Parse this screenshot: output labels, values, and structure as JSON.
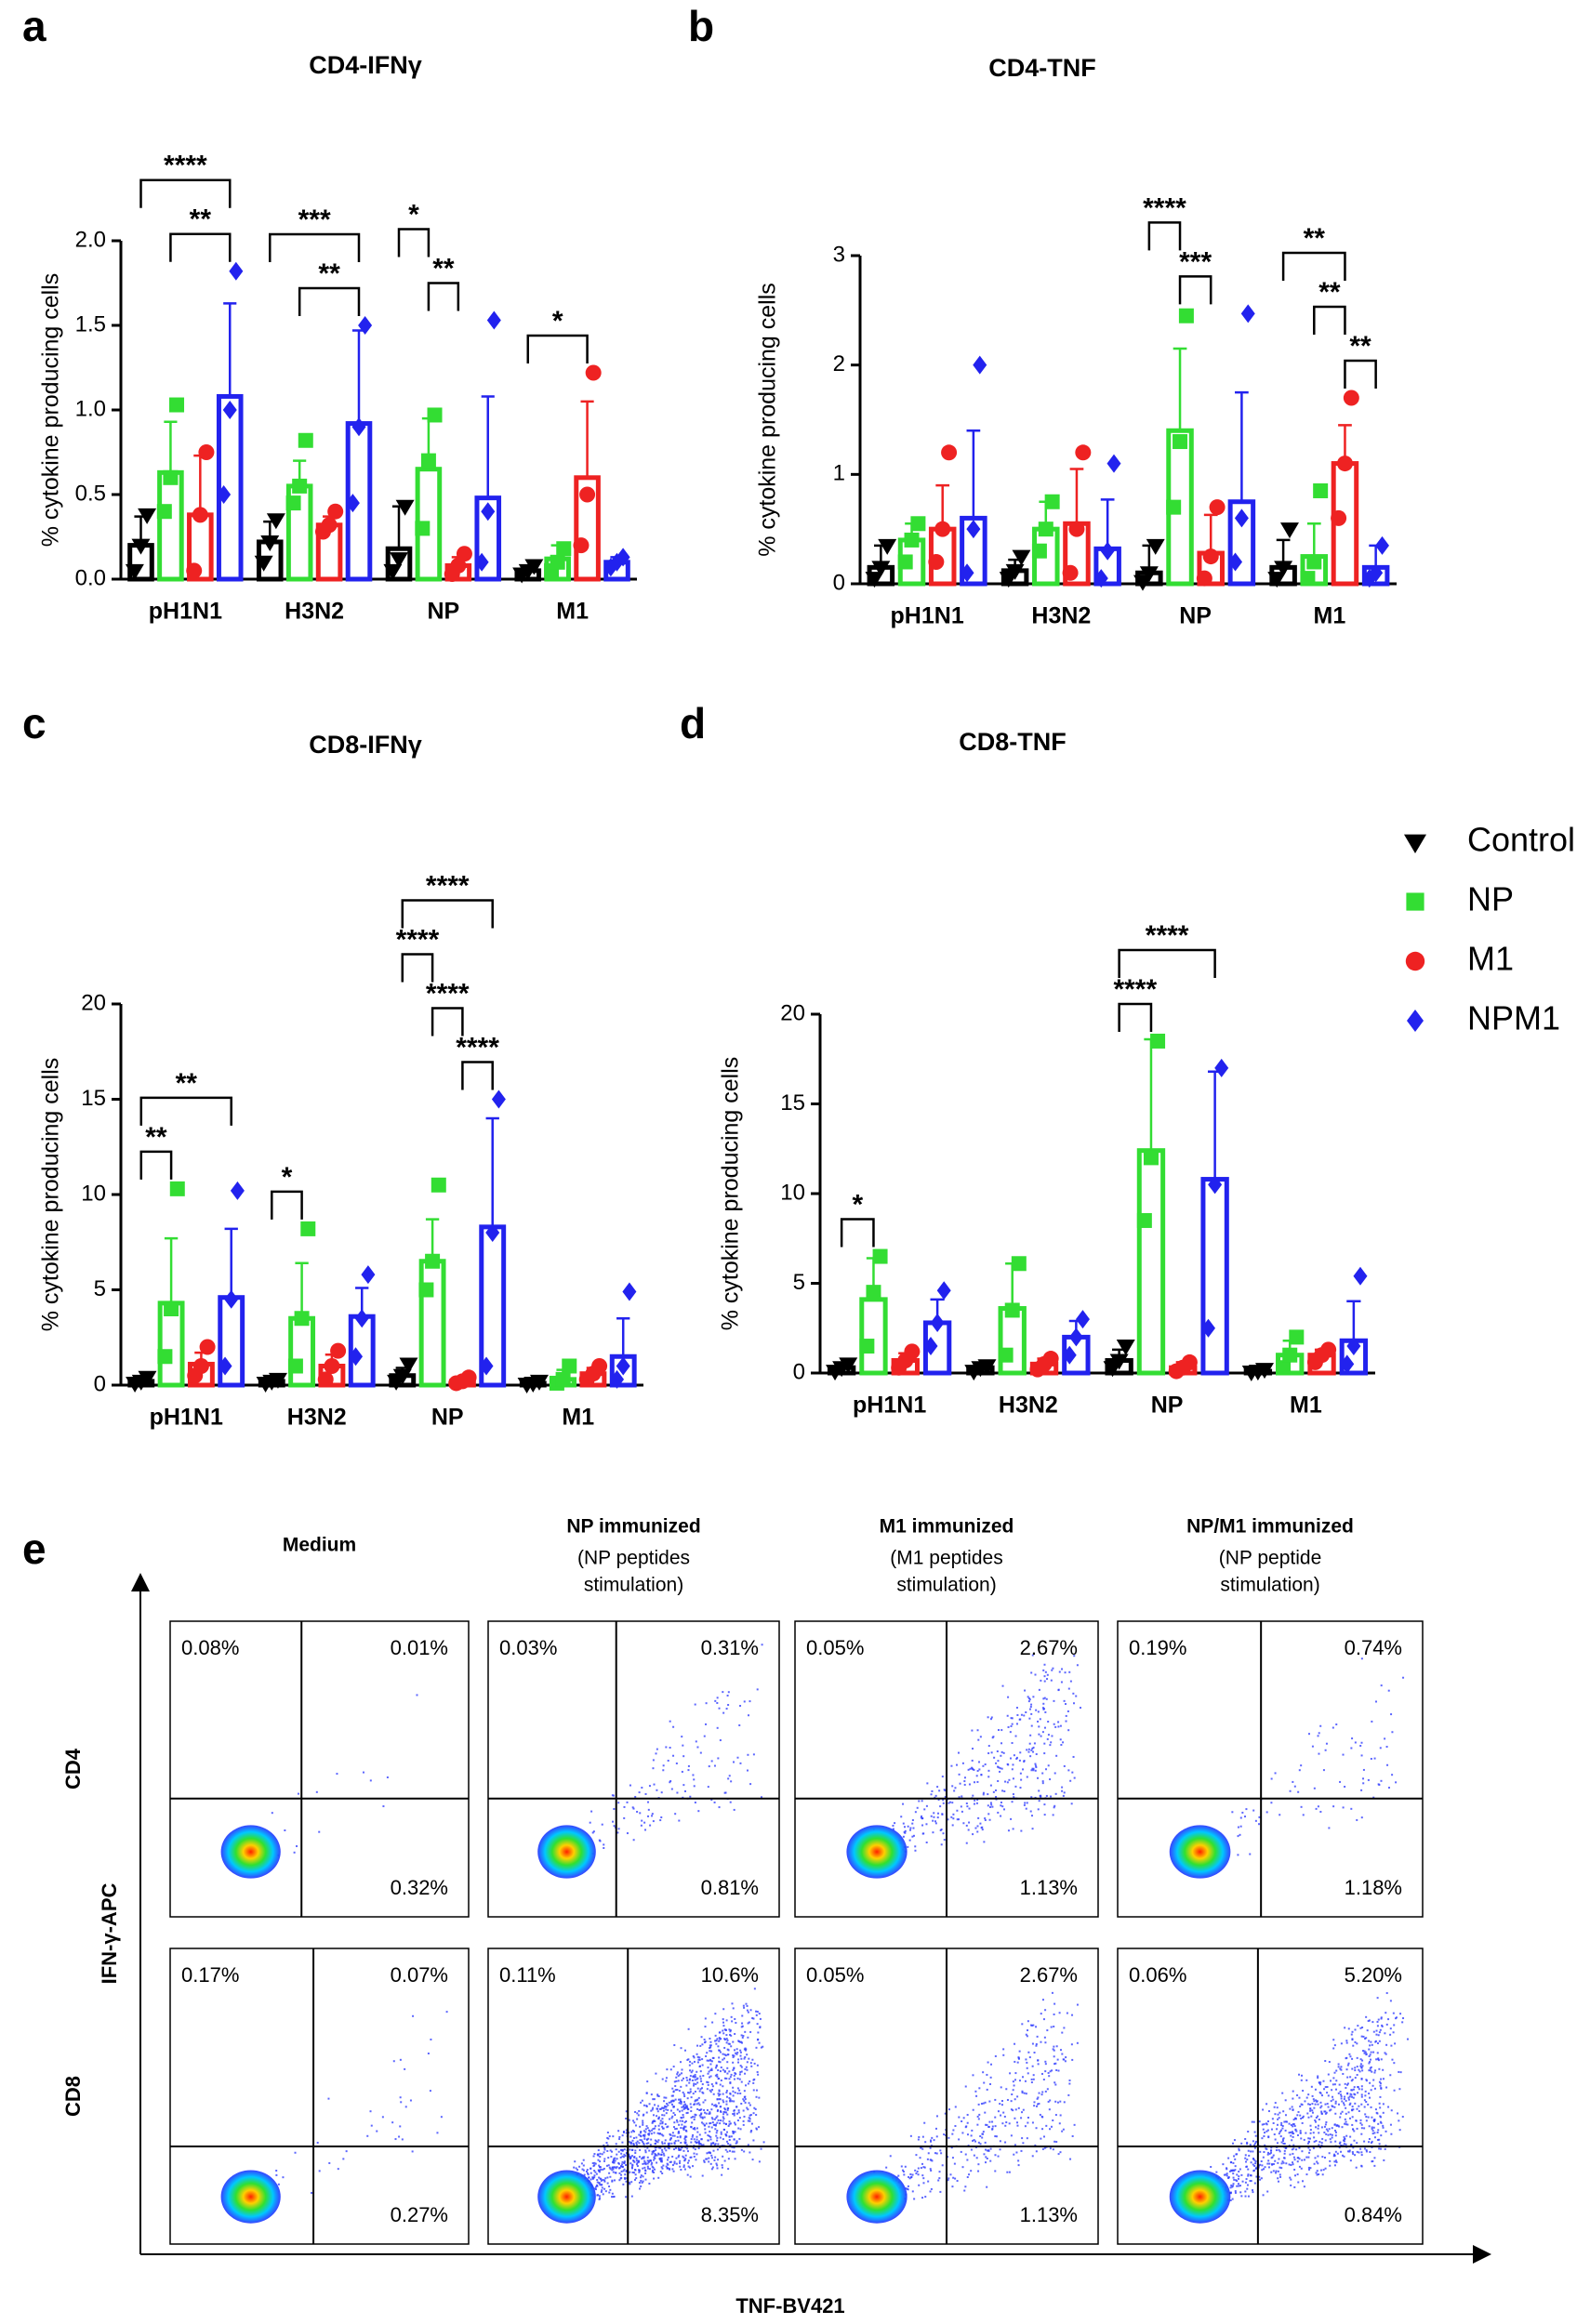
{
  "chart_data": [
    {
      "type": "bar",
      "panel": "a",
      "title": "CD4-IFNγ",
      "ylabel": "% cytokine producing cells",
      "categories": [
        "pH1N1",
        "H3N2",
        "NP",
        "M1"
      ],
      "ylim": [
        0,
        2.0
      ],
      "yticks": [
        {
          "value": 0,
          "label": "0.0"
        },
        0.5,
        {
          "value": 1,
          "label": "1.0"
        },
        1.5,
        {
          "value": 2,
          "label": "2.0"
        }
      ],
      "series": [
        {
          "name": "Control",
          "color": "#000000",
          "marker": "triangle-down",
          "values": [
            0.2,
            0.22,
            0.18,
            0.05
          ],
          "errors": [
            0.17,
            0.12,
            0.25,
            0.03
          ],
          "points": [
            [
              0.05,
              0.2,
              0.38
            ],
            [
              0.1,
              0.22,
              0.35
            ],
            [
              0.05,
              0.12,
              0.43
            ],
            [
              0.03,
              0.05,
              0.08
            ]
          ]
        },
        {
          "name": "NP",
          "color": "#33dd33",
          "marker": "square",
          "values": [
            0.63,
            0.55,
            0.65,
            0.12
          ],
          "errors": [
            0.3,
            0.15,
            0.3,
            0.08
          ],
          "points": [
            [
              0.4,
              0.6,
              1.03
            ],
            [
              0.45,
              0.55,
              0.82
            ],
            [
              0.3,
              0.7,
              0.97
            ],
            [
              0.05,
              0.1,
              0.18
            ]
          ]
        },
        {
          "name": "M1",
          "color": "#ee2222",
          "marker": "circle",
          "values": [
            0.38,
            0.32,
            0.08,
            0.6
          ],
          "errors": [
            0.35,
            0.05,
            0.05,
            0.45
          ],
          "points": [
            [
              0.05,
              0.38,
              0.75
            ],
            [
              0.28,
              0.32,
              0.4
            ],
            [
              0.03,
              0.08,
              0.15
            ],
            [
              0.2,
              0.5,
              1.22
            ]
          ]
        },
        {
          "name": "NPM1",
          "color": "#2222ee",
          "marker": "diamond",
          "values": [
            1.08,
            0.92,
            0.48,
            0.1
          ],
          "errors": [
            0.55,
            0.55,
            0.6,
            0.03
          ],
          "points": [
            [
              0.5,
              1.0,
              1.82
            ],
            [
              0.45,
              0.9,
              1.5
            ],
            [
              0.1,
              0.4,
              1.53
            ],
            [
              0.07,
              0.1,
              0.13
            ]
          ]
        }
      ],
      "annotations": [
        {
          "text": "**",
          "category": "pH1N1",
          "from": "NP",
          "to": "NPM1"
        },
        {
          "text": "****",
          "category": "pH1N1",
          "from": "Control",
          "to": "NPM1"
        },
        {
          "text": "**",
          "category": "H3N2",
          "from": "NP",
          "to": "NPM1"
        },
        {
          "text": "***",
          "category": "H3N2",
          "from": "Control",
          "to": "NPM1"
        },
        {
          "text": "**",
          "category": "NP",
          "from": "NP",
          "to": "M1"
        },
        {
          "text": "*",
          "category": "NP",
          "from": "Control",
          "to": "NP"
        },
        {
          "text": "*",
          "category": "M1",
          "from": "Control",
          "to": "M1"
        }
      ]
    },
    {
      "type": "bar",
      "panel": "b",
      "title": "CD4-TNF",
      "ylabel": "% cytokine producing cells",
      "categories": [
        "pH1N1",
        "H3N2",
        "NP",
        "M1"
      ],
      "ylim": [
        0,
        3
      ],
      "yticks": [
        0,
        1,
        2,
        3
      ],
      "series": [
        {
          "name": "Control",
          "color": "#000000",
          "marker": "triangle-down",
          "values": [
            0.15,
            0.12,
            0.1,
            0.15
          ],
          "errors": [
            0.2,
            0.1,
            0.25,
            0.25
          ],
          "points": [
            [
              0.05,
              0.15,
              0.35
            ],
            [
              0.05,
              0.12,
              0.25
            ],
            [
              0.02,
              0.1,
              0.35
            ],
            [
              0.05,
              0.15,
              0.5
            ]
          ]
        },
        {
          "name": "NP",
          "color": "#33dd33",
          "marker": "square",
          "values": [
            0.4,
            0.5,
            1.4,
            0.25
          ],
          "errors": [
            0.15,
            0.25,
            0.75,
            0.3
          ],
          "points": [
            [
              0.2,
              0.4,
              0.55
            ],
            [
              0.3,
              0.5,
              0.75
            ],
            [
              0.7,
              1.3,
              2.45
            ],
            [
              0.05,
              0.2,
              0.85
            ]
          ]
        },
        {
          "name": "M1",
          "color": "#ee2222",
          "marker": "circle",
          "values": [
            0.5,
            0.55,
            0.28,
            1.1
          ],
          "errors": [
            0.4,
            0.5,
            0.35,
            0.35
          ],
          "points": [
            [
              0.2,
              0.5,
              1.2
            ],
            [
              0.1,
              0.5,
              1.2
            ],
            [
              0.05,
              0.25,
              0.7
            ],
            [
              0.6,
              1.1,
              1.7
            ]
          ]
        },
        {
          "name": "NPM1",
          "color": "#2222ee",
          "marker": "diamond",
          "values": [
            0.6,
            0.32,
            0.75,
            0.15
          ],
          "errors": [
            0.8,
            0.45,
            1.0,
            0.2
          ],
          "points": [
            [
              0.1,
              0.5,
              2.0
            ],
            [
              0.05,
              0.3,
              1.1
            ],
            [
              0.2,
              0.6,
              2.47
            ],
            [
              0.05,
              0.1,
              0.35
            ]
          ]
        }
      ],
      "annotations": [
        {
          "text": "***",
          "category": "NP",
          "from": "NP",
          "to": "M1"
        },
        {
          "text": "****",
          "category": "NP",
          "from": "Control",
          "to": "NP"
        },
        {
          "text": "**",
          "category": "M1",
          "from": "M1",
          "to": "NPM1"
        },
        {
          "text": "**",
          "category": "M1",
          "from": "NP",
          "to": "M1"
        },
        {
          "text": "**",
          "category": "M1",
          "from": "Control",
          "to": "M1"
        }
      ]
    },
    {
      "type": "bar",
      "panel": "c",
      "title": "CD8-IFNγ",
      "ylabel": "% cytokine producing cells",
      "categories": [
        "pH1N1",
        "H3N2",
        "NP",
        "M1"
      ],
      "ylim": [
        0,
        20
      ],
      "yticks": [
        0,
        5,
        10,
        15,
        20
      ],
      "series": [
        {
          "name": "Control",
          "color": "#000000",
          "marker": "triangle-down",
          "values": [
            0.2,
            0.2,
            0.5,
            0.1
          ],
          "errors": [
            0.2,
            0.1,
            0.4,
            0.1
          ],
          "points": [
            [
              0.1,
              0.2,
              0.4
            ],
            [
              0.1,
              0.2,
              0.3
            ],
            [
              0.2,
              0.5,
              1.1
            ],
            [
              0.05,
              0.1,
              0.2
            ]
          ]
        },
        {
          "name": "NP",
          "color": "#33dd33",
          "marker": "square",
          "values": [
            4.3,
            3.5,
            6.5,
            0.3
          ],
          "errors": [
            3.4,
            2.9,
            2.2,
            0.5
          ],
          "points": [
            [
              1.5,
              4.0,
              10.3
            ],
            [
              1.0,
              3.5,
              8.2
            ],
            [
              5.0,
              6.5,
              10.5
            ],
            [
              0.1,
              0.3,
              1.0
            ]
          ]
        },
        {
          "name": "M1",
          "color": "#ee2222",
          "marker": "circle",
          "values": [
            1.1,
            1.0,
            0.2,
            0.6
          ],
          "errors": [
            0.6,
            0.6,
            0.2,
            0.3
          ],
          "points": [
            [
              0.5,
              1.0,
              2.0
            ],
            [
              0.3,
              1.0,
              1.8
            ],
            [
              0.1,
              0.2,
              0.4
            ],
            [
              0.3,
              0.6,
              1.0
            ]
          ]
        },
        {
          "name": "NPM1",
          "color": "#2222ee",
          "marker": "diamond",
          "values": [
            4.6,
            3.6,
            8.3,
            1.5
          ],
          "errors": [
            3.6,
            1.5,
            5.7,
            2.0
          ],
          "points": [
            [
              1.0,
              4.5,
              10.2
            ],
            [
              1.5,
              3.5,
              5.8
            ],
            [
              1.0,
              8.0,
              15.0
            ],
            [
              0.3,
              1.0,
              4.9
            ]
          ]
        }
      ],
      "annotations": [
        {
          "text": "**",
          "category": "pH1N1",
          "from": "Control",
          "to": "NP"
        },
        {
          "text": "**",
          "category": "pH1N1",
          "from": "Control",
          "to": "NPM1"
        },
        {
          "text": "*",
          "category": "H3N2",
          "from": "Control",
          "to": "NP"
        },
        {
          "text": "****",
          "category": "NP",
          "from": "M1",
          "to": "NPM1"
        },
        {
          "text": "****",
          "category": "NP",
          "from": "NP",
          "to": "M1"
        },
        {
          "text": "****",
          "category": "NP",
          "from": "Control",
          "to": "NP"
        },
        {
          "text": "****",
          "category": "NP",
          "from": "Control",
          "to": "NPM1"
        }
      ]
    },
    {
      "type": "bar",
      "panel": "d",
      "title": "CD8-TNF",
      "ylabel": "% cytokine producing cells",
      "legend": "right",
      "categories": [
        "pH1N1",
        "H3N2",
        "NP",
        "M1"
      ],
      "ylim": [
        0,
        20
      ],
      "yticks": [
        0,
        5,
        10,
        15,
        20
      ],
      "series": [
        {
          "name": "Control",
          "color": "#000000",
          "marker": "triangle-down",
          "values": [
            0.3,
            0.3,
            0.7,
            0.1
          ],
          "errors": [
            0.2,
            0.1,
            0.6,
            0.1
          ],
          "points": [
            [
              0.1,
              0.3,
              0.5
            ],
            [
              0.1,
              0.3,
              0.4
            ],
            [
              0.3,
              0.7,
              1.5
            ],
            [
              0.05,
              0.1,
              0.2
            ]
          ]
        },
        {
          "name": "NP",
          "color": "#33dd33",
          "marker": "square",
          "values": [
            4.1,
            3.6,
            12.4,
            1.0
          ],
          "errors": [
            2.3,
            2.5,
            6.2,
            0.8
          ],
          "points": [
            [
              1.5,
              4.5,
              6.5
            ],
            [
              1.0,
              3.5,
              6.1
            ],
            [
              8.5,
              12.0,
              18.5
            ],
            [
              0.3,
              1.0,
              2.0
            ]
          ]
        },
        {
          "name": "M1",
          "color": "#ee2222",
          "marker": "circle",
          "values": [
            0.7,
            0.5,
            0.3,
            1.0
          ],
          "errors": [
            0.4,
            0.3,
            0.3,
            0.3
          ],
          "points": [
            [
              0.3,
              0.7,
              1.2
            ],
            [
              0.2,
              0.5,
              0.8
            ],
            [
              0.1,
              0.3,
              0.6
            ],
            [
              0.6,
              1.0,
              1.3
            ]
          ]
        },
        {
          "name": "NPM1",
          "color": "#2222ee",
          "marker": "diamond",
          "values": [
            2.8,
            2.0,
            10.8,
            1.8
          ],
          "errors": [
            1.3,
            0.9,
            6.0,
            2.2
          ],
          "points": [
            [
              1.5,
              2.8,
              4.6
            ],
            [
              1.0,
              2.0,
              3.0
            ],
            [
              2.5,
              10.5,
              17.0
            ],
            [
              0.5,
              1.5,
              5.4
            ]
          ]
        }
      ],
      "annotations": [
        {
          "text": "*",
          "category": "pH1N1",
          "from": "Control",
          "to": "NP"
        },
        {
          "text": "****",
          "category": "NP",
          "from": "Control",
          "to": "NP"
        },
        {
          "text": "****",
          "category": "NP",
          "from": "Control",
          "to": "NPM1"
        }
      ]
    }
  ],
  "flow": {
    "panel": "e",
    "xlabel": "TNF-BV421",
    "ylabel": "IFN-γ-APC",
    "columns": [
      {
        "title": "Medium",
        "subtitle": []
      },
      {
        "title": "NP immunized",
        "subtitle": [
          "(NP peptides",
          "stimulation)"
        ]
      },
      {
        "title": "M1 immunized",
        "subtitle": [
          "(M1 peptides",
          "stimulation)"
        ]
      },
      {
        "title": "NP/M1 immunized",
        "subtitle": [
          "(NP peptide",
          "stimulation)"
        ]
      }
    ],
    "rows": [
      "CD4",
      "CD8"
    ],
    "quadrants": [
      [
        [
          "0.08%",
          "0.01%",
          "0.32%"
        ],
        [
          "0.03%",
          "0.31%",
          "0.81%"
        ],
        [
          "0.05%",
          "2.67%",
          "1.13%"
        ],
        [
          "0.19%",
          "0.74%",
          "1.18%"
        ]
      ],
      [
        [
          "0.17%",
          "0.07%",
          "0.27%"
        ],
        [
          "0.11%",
          "10.6%",
          "8.35%"
        ],
        [
          "0.05%",
          "2.67%",
          "1.13%"
        ],
        [
          "0.06%",
          "5.20%",
          "0.84%"
        ]
      ]
    ]
  }
}
